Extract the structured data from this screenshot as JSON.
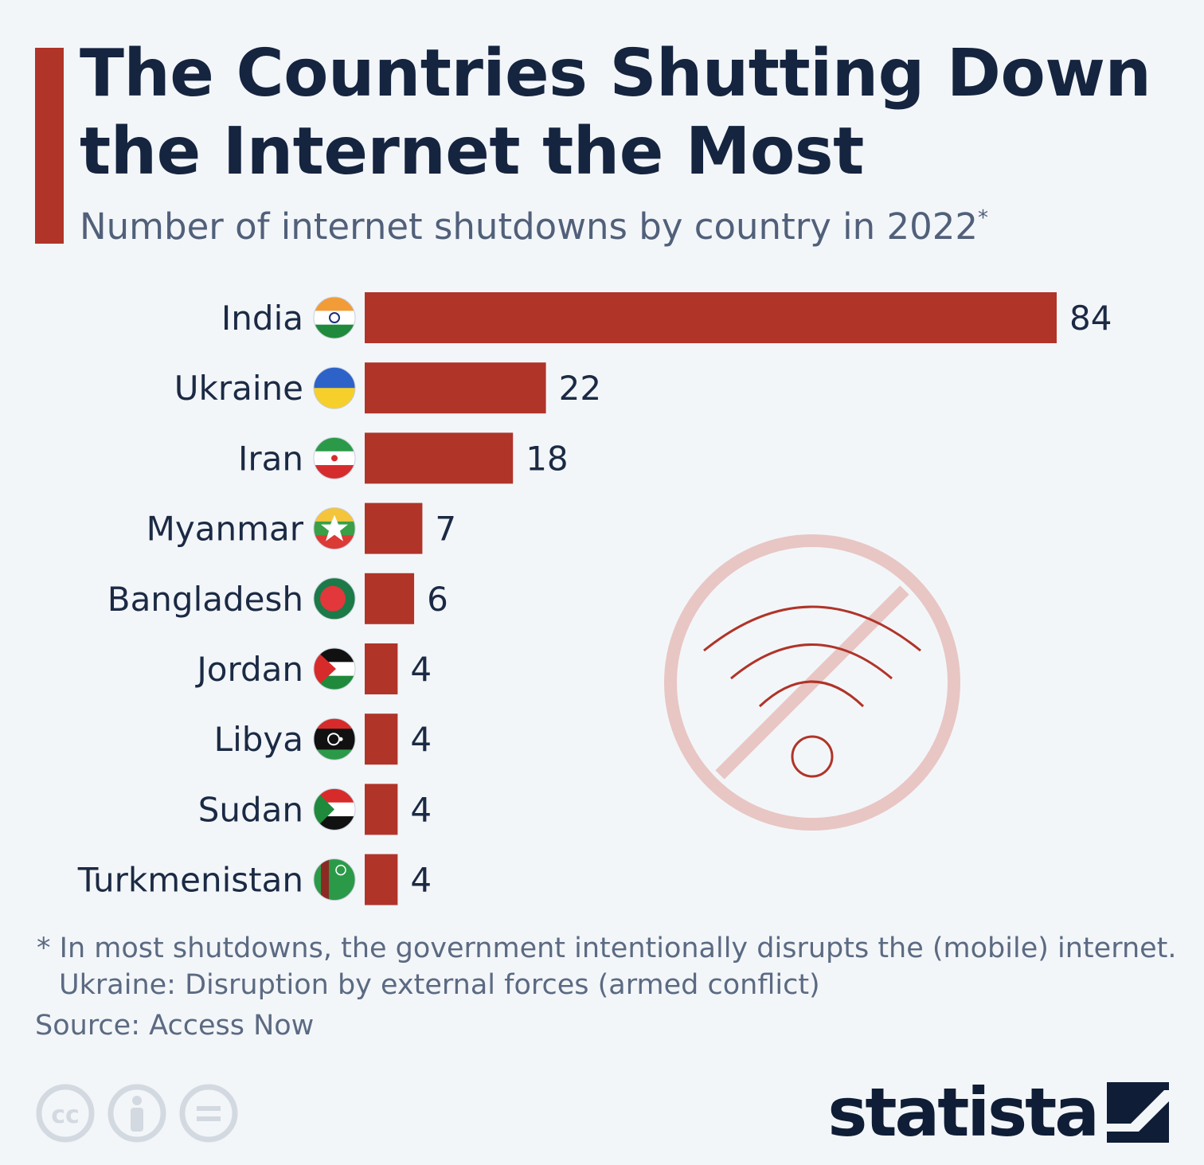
{
  "header": {
    "title": "The Countries Shutting Down the Internet the Most",
    "subtitle": "Number of internet shutdowns by country in 2022",
    "subtitle_mark": "*"
  },
  "colors": {
    "accent": "#b03428",
    "bar": "#b03428",
    "title": "#15243f",
    "text": "#5b6a82",
    "watermark": "#e8c6c4"
  },
  "chart_data": {
    "type": "bar",
    "orientation": "horizontal",
    "categories": [
      "India",
      "Ukraine",
      "Iran",
      "Myanmar",
      "Bangladesh",
      "Jordan",
      "Libya",
      "Sudan",
      "Turkmenistan"
    ],
    "values": [
      84,
      22,
      18,
      7,
      6,
      4,
      4,
      4,
      4
    ],
    "flags": [
      "india-flag-icon",
      "ukraine-flag-icon",
      "iran-flag-icon",
      "myanmar-flag-icon",
      "bangladesh-flag-icon",
      "jordan-flag-icon",
      "libya-flag-icon",
      "sudan-flag-icon",
      "turkmenistan-flag-icon"
    ],
    "data_labels": true,
    "grid": false,
    "decoration": "no-wifi-icon"
  },
  "footnote": {
    "line1": "* In most shutdowns, the government intentionally disrupts the (mobile) internet.",
    "line2": "Ukraine: Disruption by external forces (armed conflict)"
  },
  "source": "Source: Access Now",
  "license_icons": [
    "cc-icon",
    "attribution-icon",
    "no-derivatives-icon"
  ],
  "brand": {
    "name": "statista"
  }
}
